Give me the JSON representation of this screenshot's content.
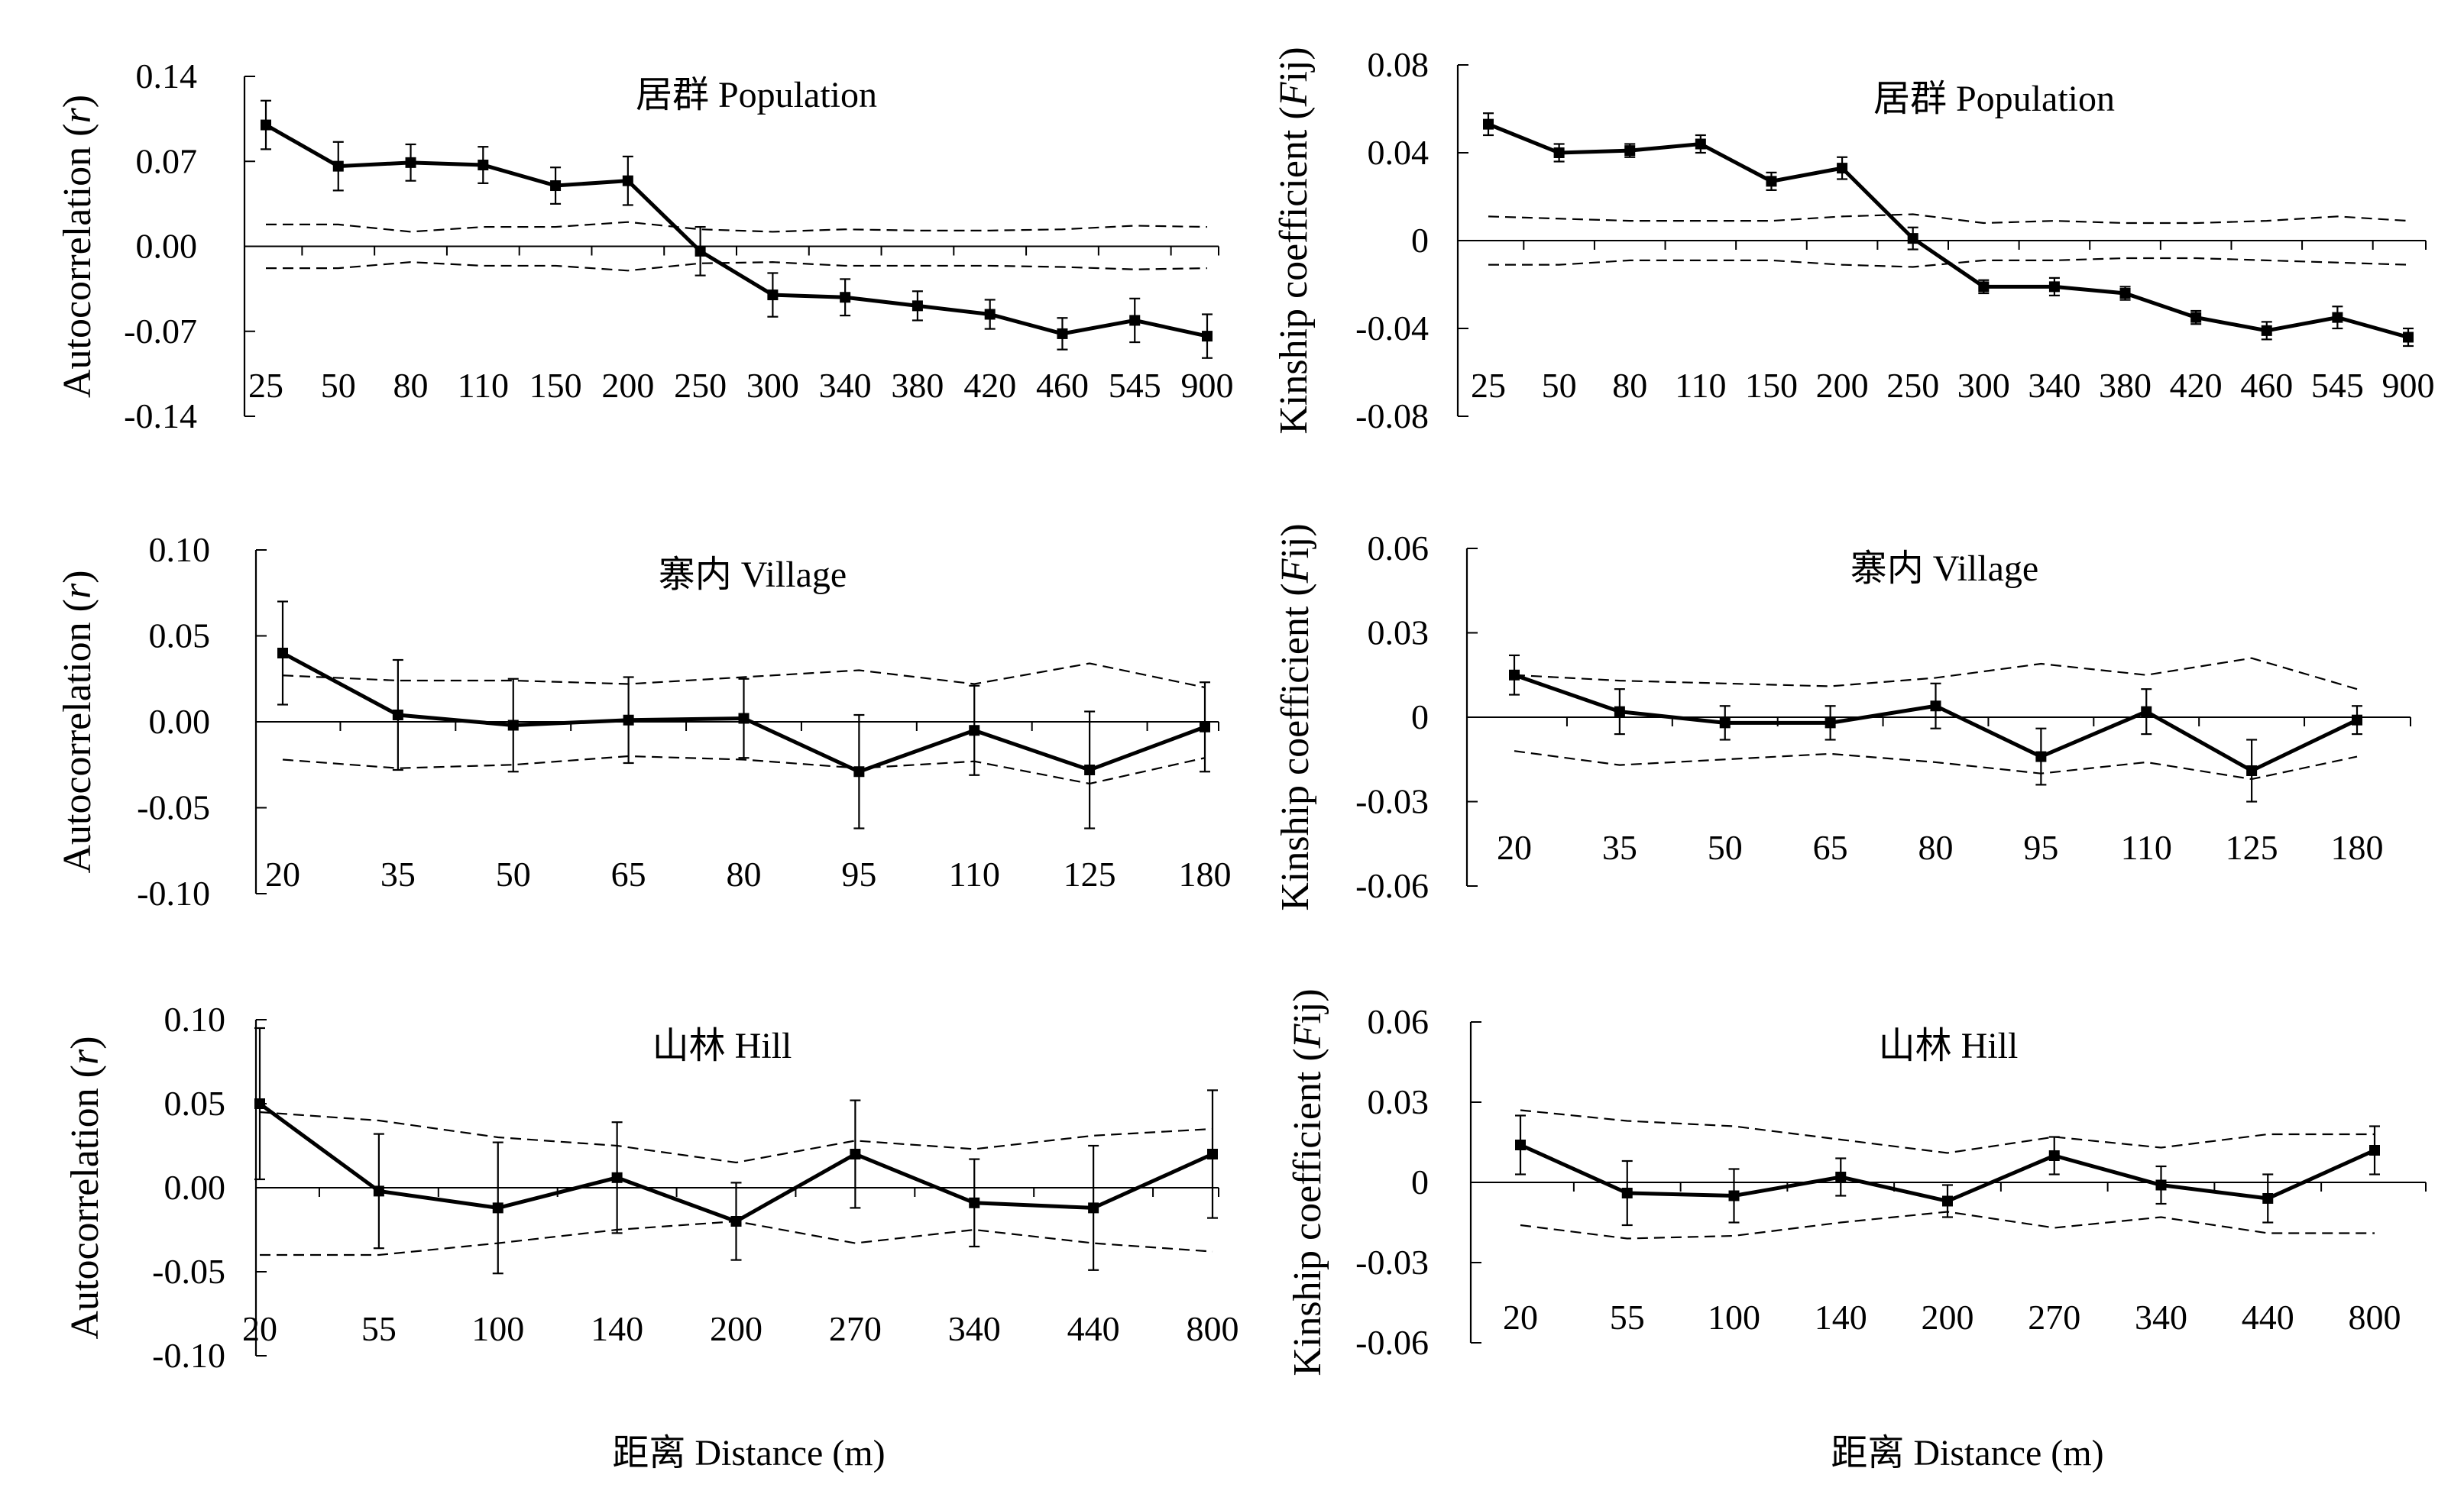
{
  "figure": {
    "xlabel": "距离 Distance (m)"
  },
  "chart_data": [
    {
      "type": "line",
      "title": "居群 Population",
      "ylabel_pre": "Autocorrelation (",
      "ylabel_var": "r",
      "ylabel_post": ")",
      "categories": [
        "25",
        "50",
        "80",
        "110",
        "150",
        "200",
        "250",
        "300",
        "340",
        "380",
        "420",
        "460",
        "545",
        "900"
      ],
      "yticks": [
        "0.14",
        "0.07",
        "0.00",
        "-0.07",
        "-0.14"
      ],
      "ylim": [
        -0.14,
        0.14
      ],
      "series": [
        {
          "values": [
            0.1,
            0.066,
            0.069,
            0.067,
            0.05,
            0.054,
            -0.004,
            -0.04,
            -0.042,
            -0.049,
            -0.056,
            -0.072,
            -0.061,
            -0.074
          ],
          "err": [
            0.02,
            0.02,
            0.015,
            0.015,
            0.015,
            0.02,
            0.02,
            0.018,
            0.015,
            0.012,
            0.012,
            0.013,
            0.018,
            0.018
          ]
        }
      ],
      "upper_ci": [
        0.018,
        0.018,
        0.012,
        0.016,
        0.016,
        0.02,
        0.014,
        0.012,
        0.014,
        0.013,
        0.013,
        0.014,
        0.017,
        0.016
      ],
      "lower_ci": [
        -0.018,
        -0.018,
        -0.013,
        -0.016,
        -0.016,
        -0.02,
        -0.014,
        -0.013,
        -0.016,
        -0.016,
        -0.016,
        -0.017,
        -0.019,
        -0.018
      ]
    },
    {
      "type": "line",
      "title": "居群 Population",
      "ylabel_pre": "Kinship coefficient (",
      "ylabel_var": "F",
      "ylabel_post": "ij)",
      "categories": [
        "25",
        "50",
        "80",
        "110",
        "150",
        "200",
        "250",
        "300",
        "340",
        "380",
        "420",
        "460",
        "545",
        "900"
      ],
      "yticks": [
        "0.08",
        "0.04",
        "0",
        "-0.04",
        "-0.08"
      ],
      "ylim": [
        -0.08,
        0.08
      ],
      "series": [
        {
          "values": [
            0.053,
            0.04,
            0.041,
            0.044,
            0.027,
            0.033,
            0.001,
            -0.021,
            -0.021,
            -0.024,
            -0.035,
            -0.041,
            -0.035,
            -0.044
          ],
          "err": [
            0.005,
            0.004,
            0.003,
            0.004,
            0.004,
            0.005,
            0.005,
            0.003,
            0.004,
            0.003,
            0.003,
            0.004,
            0.005,
            0.004
          ]
        }
      ],
      "upper_ci": [
        0.011,
        0.01,
        0.009,
        0.009,
        0.009,
        0.011,
        0.012,
        0.008,
        0.009,
        0.008,
        0.008,
        0.009,
        0.011,
        0.009
      ],
      "lower_ci": [
        -0.011,
        -0.011,
        -0.009,
        -0.009,
        -0.009,
        -0.011,
        -0.012,
        -0.009,
        -0.009,
        -0.008,
        -0.008,
        -0.009,
        -0.01,
        -0.011
      ]
    },
    {
      "type": "line",
      "title": "寨内 Village",
      "ylabel_pre": "Autocorrelation (",
      "ylabel_var": "r",
      "ylabel_post": ")",
      "categories": [
        "20",
        "35",
        "50",
        "65",
        "80",
        "95",
        "110",
        "125",
        "180"
      ],
      "yticks": [
        "0.10",
        "0.05",
        "0.00",
        "-0.05",
        "-0.10"
      ],
      "ylim": [
        -0.1,
        0.1
      ],
      "series": [
        {
          "values": [
            0.04,
            0.004,
            -0.002,
            0.001,
            0.002,
            -0.029,
            -0.005,
            -0.028,
            -0.003
          ],
          "err": [
            0.03,
            0.032,
            0.027,
            0.025,
            0.023,
            0.033,
            0.026,
            0.034,
            0.026
          ]
        }
      ],
      "upper_ci": [
        0.027,
        0.024,
        0.024,
        0.022,
        0.026,
        0.03,
        0.022,
        0.034,
        0.02
      ],
      "lower_ci": [
        -0.022,
        -0.027,
        -0.025,
        -0.02,
        -0.022,
        -0.027,
        -0.023,
        -0.036,
        -0.021
      ]
    },
    {
      "type": "line",
      "title": "寨内 Village",
      "ylabel_pre": "Kinship coefficient (",
      "ylabel_var": "F",
      "ylabel_post": "ij)",
      "categories": [
        "20",
        "35",
        "50",
        "65",
        "80",
        "95",
        "110",
        "125",
        "180"
      ],
      "yticks": [
        "0.06",
        "0.03",
        "0",
        "-0.03",
        "-0.06"
      ],
      "ylim": [
        -0.06,
        0.06
      ],
      "series": [
        {
          "values": [
            0.015,
            0.002,
            -0.002,
            -0.002,
            0.004,
            -0.014,
            0.002,
            -0.019,
            -0.001
          ],
          "err": [
            0.007,
            0.008,
            0.006,
            0.006,
            0.008,
            0.01,
            0.008,
            0.011,
            0.005
          ]
        }
      ],
      "upper_ci": [
        0.015,
        0.013,
        0.012,
        0.011,
        0.014,
        0.019,
        0.015,
        0.021,
        0.01
      ],
      "lower_ci": [
        -0.012,
        -0.017,
        -0.015,
        -0.013,
        -0.016,
        -0.02,
        -0.016,
        -0.022,
        -0.014
      ]
    },
    {
      "type": "line",
      "title": "山林 Hill",
      "ylabel_pre": "Autocorrelation (",
      "ylabel_var": "r",
      "ylabel_post": ")",
      "categories": [
        "20",
        "55",
        "100",
        "140",
        "200",
        "270",
        "340",
        "440",
        "800"
      ],
      "yticks": [
        "0.10",
        "0.05",
        "0.00",
        "-0.05",
        "-0.10"
      ],
      "ylim": [
        -0.1,
        0.1
      ],
      "series": [
        {
          "values": [
            0.05,
            -0.002,
            -0.012,
            0.006,
            -0.02,
            0.02,
            -0.009,
            -0.012,
            0.02
          ],
          "err": [
            0.045,
            0.034,
            0.039,
            0.033,
            0.023,
            0.032,
            0.026,
            0.037,
            0.038
          ]
        }
      ],
      "upper_ci": [
        0.045,
        0.04,
        0.03,
        0.025,
        0.015,
        0.028,
        0.023,
        0.031,
        0.035
      ],
      "lower_ci": [
        -0.04,
        -0.04,
        -0.033,
        -0.025,
        -0.02,
        -0.033,
        -0.025,
        -0.033,
        -0.038
      ]
    },
    {
      "type": "line",
      "title": "山林 Hill",
      "ylabel_pre": "Kinship coefficient (",
      "ylabel_var": "F",
      "ylabel_post": "ij)",
      "categories": [
        "20",
        "55",
        "100",
        "140",
        "200",
        "270",
        "340",
        "440",
        "800"
      ],
      "yticks": [
        "0.06",
        "0.03",
        "0",
        "-0.03",
        "-0.06"
      ],
      "ylim": [
        -0.06,
        0.06
      ],
      "series": [
        {
          "values": [
            0.014,
            -0.004,
            -0.005,
            0.002,
            -0.007,
            0.01,
            -0.001,
            -0.006,
            0.012
          ],
          "err": [
            0.011,
            0.012,
            0.01,
            0.007,
            0.006,
            0.007,
            0.007,
            0.009,
            0.009
          ]
        }
      ],
      "upper_ci": [
        0.027,
        0.023,
        0.021,
        0.016,
        0.011,
        0.017,
        0.013,
        0.018,
        0.018
      ],
      "lower_ci": [
        -0.016,
        -0.021,
        -0.02,
        -0.015,
        -0.011,
        -0.017,
        -0.013,
        -0.019,
        -0.019
      ]
    }
  ]
}
